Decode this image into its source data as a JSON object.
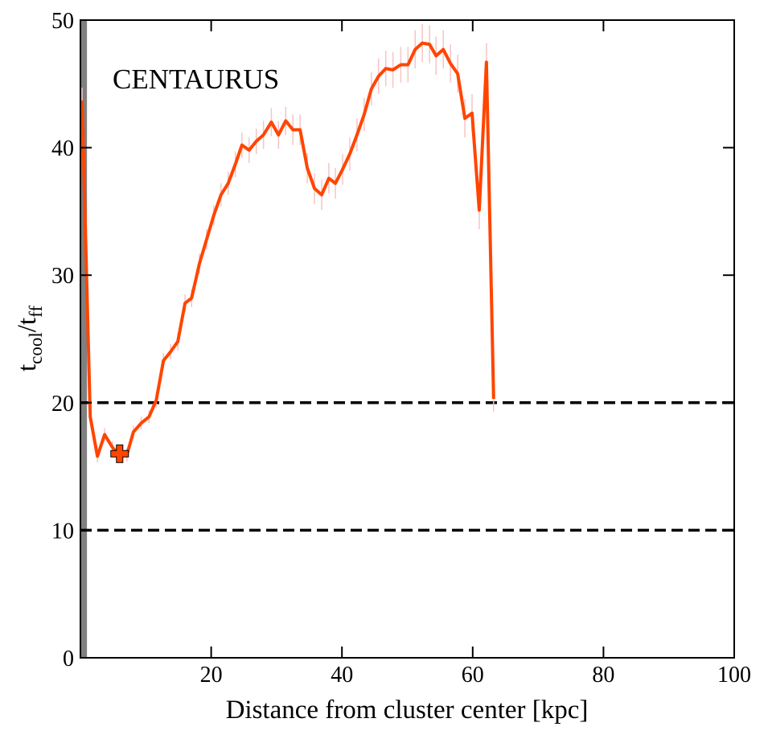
{
  "chart_data": {
    "type": "line",
    "annotation": "CENTAURUS",
    "xlabel": "Distance from cluster center [kpc]",
    "ylabel_parts": [
      "t",
      "cool",
      "/t",
      "ff"
    ],
    "x": [
      0.25,
      1.5,
      2.6,
      3.7,
      4.9,
      6.0,
      7.1,
      8.1,
      9.3,
      10.5,
      11.6,
      12.7,
      13.8,
      14.9,
      16.0,
      17.0,
      18.2,
      19.3,
      20.4,
      21.5,
      22.6,
      23.7,
      24.7,
      25.8,
      26.9,
      28.0,
      29.2,
      30.3,
      31.4,
      32.5,
      33.6,
      34.7,
      35.8,
      36.9,
      38.0,
      39.0,
      40.1,
      41.2,
      42.3,
      43.4,
      44.5,
      45.6,
      46.7,
      47.8,
      49.0,
      50.1,
      51.2,
      52.3,
      53.4,
      54.4,
      55.5,
      56.6,
      57.7,
      58.8,
      59.9,
      61.0,
      62.1,
      63.2
    ],
    "values": [
      43.7,
      18.9,
      15.8,
      17.5,
      16.5,
      15.8,
      15.9,
      17.7,
      18.4,
      18.9,
      20.2,
      23.3,
      24.0,
      24.8,
      27.8,
      28.2,
      30.9,
      32.8,
      34.7,
      36.3,
      37.2,
      38.7,
      40.2,
      39.8,
      40.5,
      41.0,
      42.0,
      41.0,
      42.1,
      41.4,
      41.4,
      38.4,
      36.8,
      36.3,
      37.6,
      37.2,
      38.3,
      39.5,
      41.0,
      42.6,
      44.6,
      45.6,
      46.2,
      46.1,
      46.5,
      46.5,
      47.7,
      48.2,
      48.1,
      47.2,
      47.7,
      46.6,
      45.8,
      42.3,
      42.7,
      35.1,
      46.7,
      20.3
    ],
    "errors": [
      1.0,
      0.5,
      0.5,
      0.5,
      0.5,
      0.5,
      0.5,
      0.5,
      0.5,
      0.5,
      0.6,
      0.6,
      0.6,
      0.7,
      0.7,
      0.7,
      0.8,
      0.8,
      0.8,
      0.9,
      0.9,
      1.0,
      1.0,
      1.0,
      1.0,
      1.1,
      1.1,
      1.1,
      1.1,
      1.2,
      1.2,
      1.2,
      1.2,
      1.2,
      1.2,
      1.2,
      1.2,
      1.3,
      1.3,
      1.3,
      1.3,
      1.4,
      1.4,
      1.4,
      1.4,
      1.4,
      1.5,
      1.5,
      1.5,
      1.5,
      1.5,
      1.5,
      1.5,
      1.5,
      1.5,
      1.5,
      1.5,
      1.0
    ],
    "color": "#ff4500",
    "error_color": "#f7c4c4",
    "marker": {
      "x": 6.0,
      "y": 16.0,
      "color": "#ff4500"
    },
    "hlines": [
      20,
      10
    ],
    "shaded_region": {
      "x": [
        0,
        1.0
      ],
      "color": "#808080"
    },
    "xlim": [
      0,
      100
    ],
    "xticks": [
      20,
      40,
      60,
      80,
      100
    ],
    "ylim": [
      0,
      50
    ],
    "yticks": [
      0,
      10,
      20,
      30,
      40,
      50
    ]
  }
}
